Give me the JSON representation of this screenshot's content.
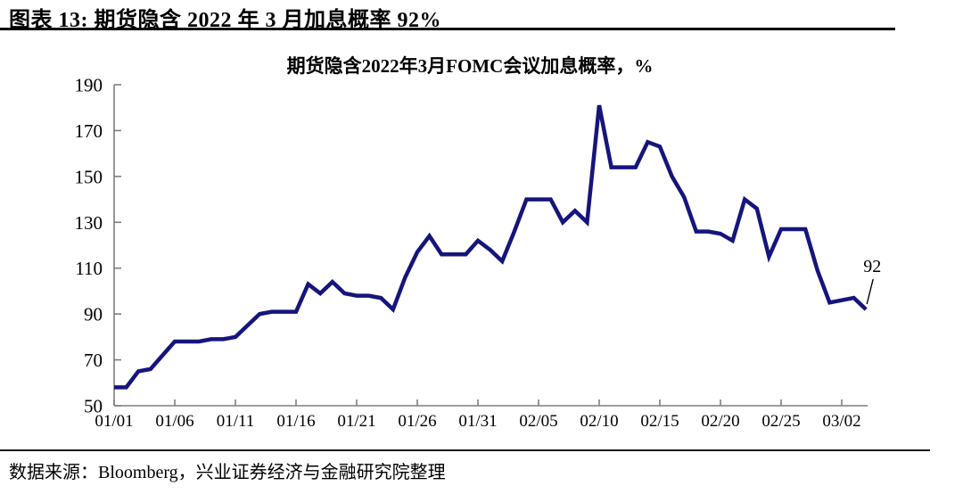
{
  "header": {
    "title": "图表 13: 期货隐含 2022 年 3 月加息概率 92%"
  },
  "footer": {
    "source": "数据来源：Bloomberg，兴业证券经济与金融研究院整理"
  },
  "chart_data": {
    "type": "line",
    "title": "期货隐含2022年3月FOMC会议加息概率，%",
    "x": [
      "01/01",
      "01/02",
      "01/03",
      "01/04",
      "01/05",
      "01/06",
      "01/07",
      "01/08",
      "01/09",
      "01/10",
      "01/11",
      "01/12",
      "01/13",
      "01/14",
      "01/15",
      "01/16",
      "01/17",
      "01/18",
      "01/19",
      "01/20",
      "01/21",
      "01/22",
      "01/23",
      "01/24",
      "01/25",
      "01/26",
      "01/27",
      "01/28",
      "01/29",
      "01/30",
      "01/31",
      "02/01",
      "02/02",
      "02/03",
      "02/04",
      "02/05",
      "02/06",
      "02/07",
      "02/08",
      "02/09",
      "02/10",
      "02/11",
      "02/12",
      "02/13",
      "02/14",
      "02/15",
      "02/16",
      "02/17",
      "02/18",
      "02/19",
      "02/20",
      "02/21",
      "02/22",
      "02/23",
      "02/24",
      "02/25",
      "02/26",
      "02/27",
      "02/28",
      "03/01",
      "03/02",
      "03/03",
      "03/04"
    ],
    "values": [
      58,
      58,
      65,
      66,
      72,
      78,
      78,
      78,
      79,
      79,
      80,
      85,
      90,
      91,
      91,
      91,
      103,
      99,
      104,
      99,
      98,
      98,
      97,
      92,
      106,
      117,
      124,
      116,
      116,
      116,
      122,
      118,
      113,
      126,
      140,
      140,
      140,
      130,
      135,
      130,
      181,
      154,
      154,
      154,
      165,
      163,
      150,
      141,
      126,
      126,
      125,
      122,
      140,
      136,
      115,
      127,
      127,
      127,
      109,
      95,
      96,
      97,
      92
    ],
    "ylim": [
      50,
      190
    ],
    "yticks": [
      50,
      70,
      90,
      110,
      130,
      150,
      170,
      190
    ],
    "xtick_labels": [
      "01/01",
      "01/06",
      "01/11",
      "01/16",
      "01/21",
      "01/26",
      "01/31",
      "02/05",
      "02/10",
      "02/15",
      "02/20",
      "02/25",
      "03/02"
    ],
    "annotation": {
      "text": "92",
      "target": "last-point"
    },
    "line_color": "#15157D",
    "axis_color": "#7f7f7f",
    "grid": "off",
    "legend": "none"
  }
}
